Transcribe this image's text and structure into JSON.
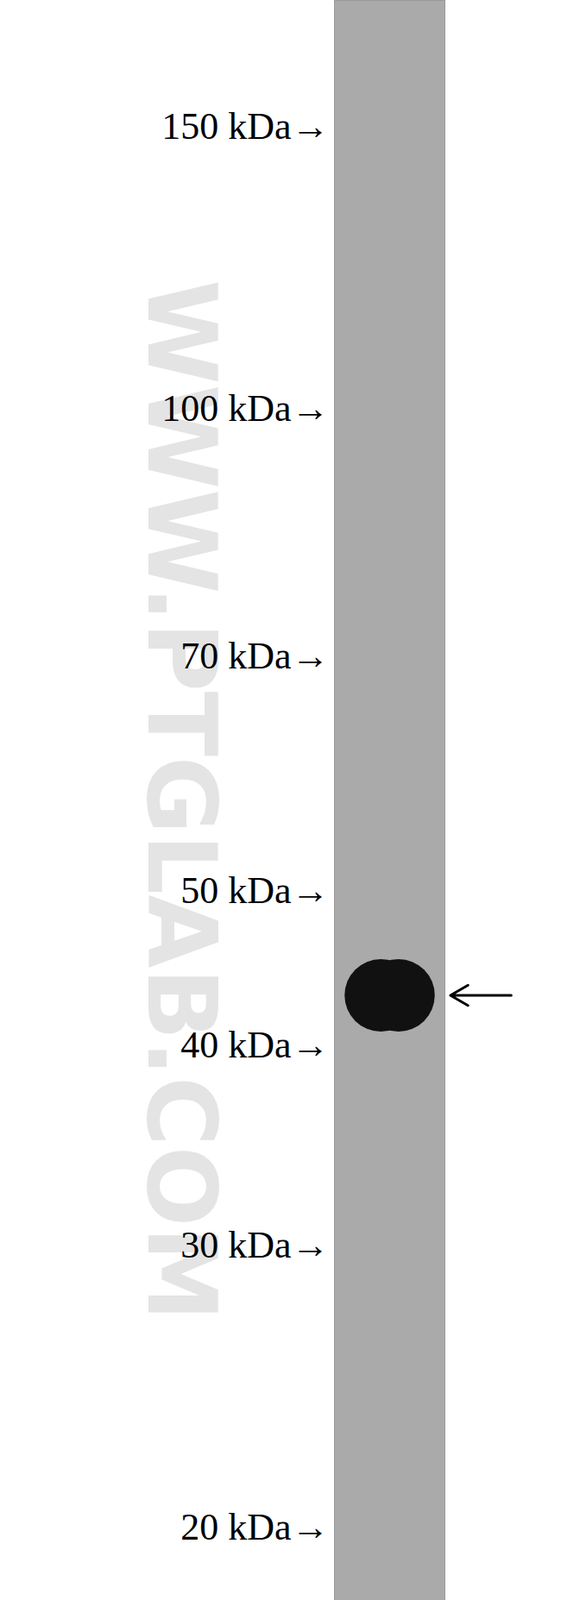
{
  "chart_data": {
    "type": "western_blot",
    "watermark": "WWW.PTGLAB.COM",
    "log": "y",
    "ylim": [
      18,
      180
    ],
    "yticks": [
      {
        "value": 150,
        "label": "150 kDa→"
      },
      {
        "value": 100,
        "label": "100 kDa→"
      },
      {
        "value": 70,
        "label": "70 kDa→"
      },
      {
        "value": 50,
        "label": "50 kDa→"
      },
      {
        "value": 40,
        "label": "40 kDa→"
      },
      {
        "value": 30,
        "label": "30 kDa→"
      },
      {
        "value": 20,
        "label": "20 kDa→"
      }
    ],
    "values": [
      43
    ],
    "color": "#111111"
  }
}
